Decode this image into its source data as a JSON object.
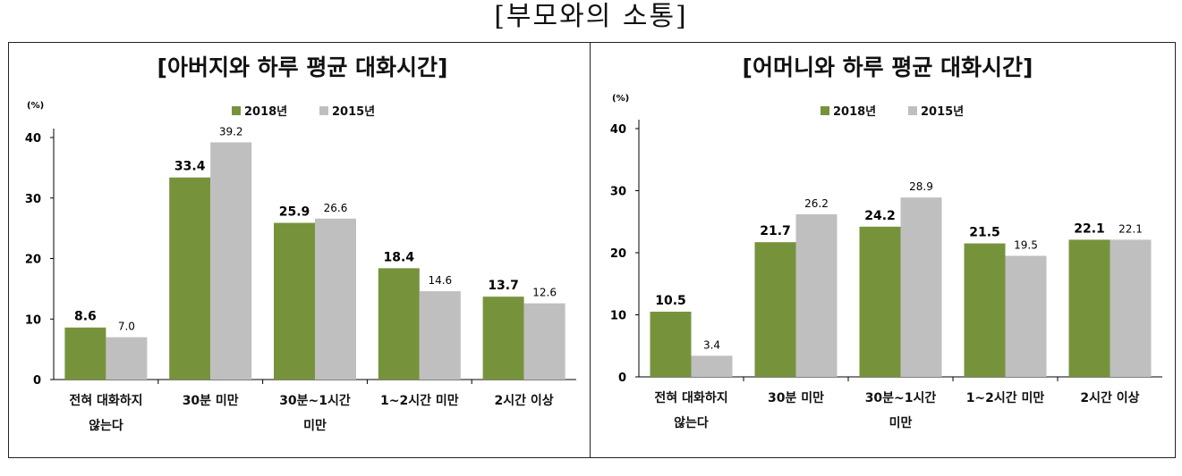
{
  "page_title": "[부모와의 소통]",
  "colors": {
    "series_2018": "#76933c",
    "series_2015": "#bfbfbf",
    "axis": "#000000"
  },
  "chart_data": [
    {
      "type": "bar",
      "title": "[아버지와 하루 평균 대화시간]",
      "ylabel": "(%)",
      "ylim": [
        0,
        40
      ],
      "yticks": [
        0,
        10,
        20,
        30,
        40
      ],
      "legend_position": "top-center",
      "grid": false,
      "categories": [
        [
          "전혀 대화하지",
          "않는다"
        ],
        [
          "30분 미만"
        ],
        [
          "30분~1시간",
          "미만"
        ],
        [
          "1~2시간 미만"
        ],
        [
          "2시간 이상"
        ]
      ],
      "series": [
        {
          "name": "2018년",
          "values": [
            8.6,
            33.4,
            25.9,
            18.4,
            13.7
          ],
          "labels": [
            "8.6",
            "33.4",
            "25.9",
            "18.4",
            "13.7"
          ]
        },
        {
          "name": "2015년",
          "values": [
            7.0,
            39.2,
            26.6,
            14.6,
            12.6
          ],
          "labels": [
            "7.0",
            "39.2",
            "26.6",
            "14.6",
            "12.6"
          ]
        }
      ]
    },
    {
      "type": "bar",
      "title": "[어머니와 하루 평균 대화시간]",
      "ylabel": "(%)",
      "ylim": [
        0,
        40
      ],
      "yticks": [
        0,
        10,
        20,
        30,
        40
      ],
      "legend_position": "top-center",
      "grid": false,
      "categories": [
        [
          "전혀 대화하지",
          "않는다"
        ],
        [
          "30분 미만"
        ],
        [
          "30분~1시간",
          "미만"
        ],
        [
          "1~2시간 미만"
        ],
        [
          "2시간 이상"
        ]
      ],
      "series": [
        {
          "name": "2018년",
          "values": [
            10.5,
            21.7,
            24.2,
            21.5,
            22.1
          ],
          "labels": [
            "10.5",
            "21.7",
            "24.2",
            "21.5",
            "22.1"
          ]
        },
        {
          "name": "2015년",
          "values": [
            3.4,
            26.2,
            28.9,
            19.5,
            22.1
          ],
          "labels": [
            "3.4",
            "26.2",
            "28.9",
            "19.5",
            "22.1"
          ]
        }
      ]
    }
  ]
}
